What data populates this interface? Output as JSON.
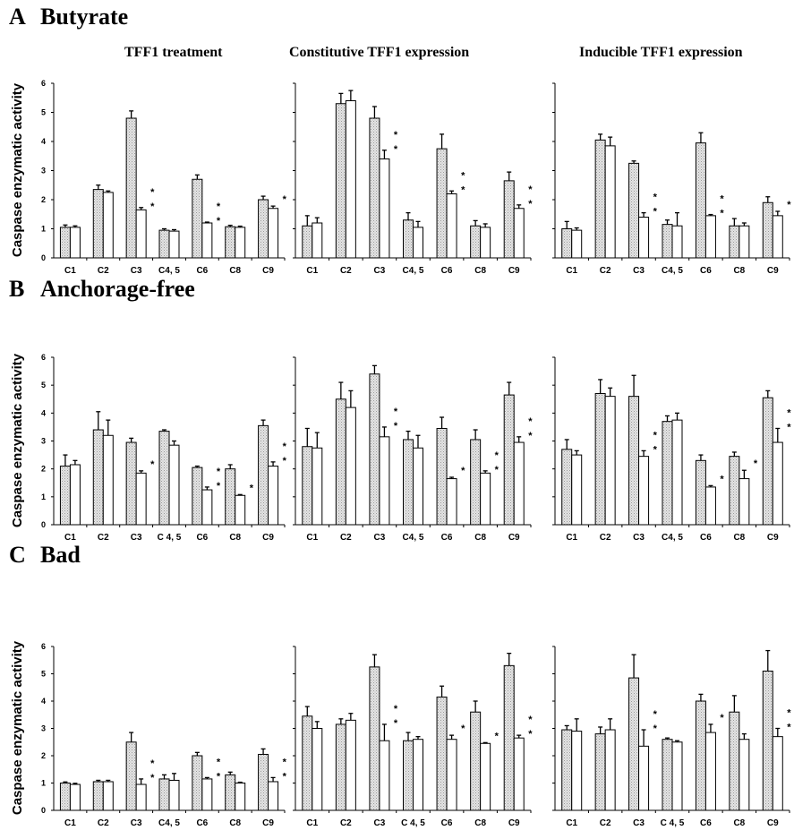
{
  "col_titles": [
    "TFF1 treatment",
    "Constitutive TFF1  expression",
    "Inducible TFF1 expression"
  ],
  "ylabel": "Caspase enzymatic activity",
  "categories_default": [
    "C1",
    "C2",
    "C3",
    "C4, 5",
    "C6",
    "C8",
    "C9"
  ],
  "yticks": [
    "0",
    "1",
    "2",
    "3",
    "4",
    "5",
    "6"
  ],
  "chart_data": [
    {
      "type": "bar",
      "panel": "A",
      "panel_title": "Butyrate",
      "ylim": [
        0,
        6
      ],
      "charts": [
        {
          "categories": [
            "C1",
            "C2",
            "C3",
            "C4, 5",
            "C6",
            "C8",
            "C9"
          ],
          "series": [
            {
              "values": [
                1.05,
                2.35,
                4.8,
                0.95,
                2.7,
                1.07,
                2.0
              ],
              "errors": [
                0.08,
                0.15,
                0.25,
                0.05,
                0.15,
                0.05,
                0.12
              ]
            },
            {
              "values": [
                1.05,
                2.25,
                1.65,
                0.92,
                1.2,
                1.05,
                1.7
              ],
              "errors": [
                0.05,
                0.05,
                0.08,
                0.05,
                0.03,
                0.04,
                0.08
              ]
            }
          ],
          "sig": [
            "",
            "",
            "**",
            "",
            "**",
            "",
            "*"
          ]
        },
        {
          "categories": [
            "C1",
            "C2",
            "C3",
            "C4, 5",
            "C6",
            "C8",
            "C9"
          ],
          "series": [
            {
              "values": [
                1.1,
                5.3,
                4.8,
                1.3,
                3.75,
                1.1,
                2.65
              ],
              "errors": [
                0.35,
                0.35,
                0.4,
                0.25,
                0.5,
                0.18,
                0.3
              ]
            },
            {
              "values": [
                1.2,
                5.4,
                3.4,
                1.05,
                2.2,
                1.05,
                1.7
              ],
              "errors": [
                0.18,
                0.35,
                0.3,
                0.2,
                0.1,
                0.12,
                0.12
              ]
            }
          ],
          "sig": [
            "",
            "",
            "**",
            "",
            "**",
            "",
            "**"
          ]
        },
        {
          "categories": [
            "C1",
            "C2",
            "C3",
            "C4, 5",
            "C6",
            "C8",
            "C9"
          ],
          "series": [
            {
              "values": [
                1.0,
                4.05,
                3.25,
                1.15,
                3.95,
                1.1,
                1.9
              ],
              "errors": [
                0.25,
                0.2,
                0.08,
                0.15,
                0.35,
                0.25,
                0.2
              ]
            },
            {
              "values": [
                0.95,
                3.85,
                1.4,
                1.1,
                1.45,
                1.1,
                1.45
              ],
              "errors": [
                0.08,
                0.3,
                0.15,
                0.45,
                0.04,
                0.1,
                0.15
              ]
            }
          ],
          "sig": [
            "",
            "",
            "**",
            "",
            "**",
            "",
            "*"
          ]
        }
      ]
    },
    {
      "type": "bar",
      "panel": "B",
      "panel_title": "Anchorage-free",
      "ylim": [
        0,
        6
      ],
      "charts": [
        {
          "categories": [
            "C1",
            "C2",
            "C3",
            "C 4, 5",
            "C6",
            "C8",
            "C9"
          ],
          "series": [
            {
              "values": [
                2.1,
                3.4,
                2.95,
                3.35,
                2.05,
                2.0,
                3.55
              ],
              "errors": [
                0.4,
                0.65,
                0.15,
                0.05,
                0.05,
                0.15,
                0.2
              ]
            },
            {
              "values": [
                2.15,
                3.2,
                1.85,
                2.85,
                1.25,
                1.05,
                2.1
              ],
              "errors": [
                0.15,
                0.55,
                0.08,
                0.15,
                0.1,
                0.03,
                0.15
              ]
            }
          ],
          "sig": [
            "",
            "",
            "*",
            "",
            "**",
            "*",
            "**"
          ]
        },
        {
          "categories": [
            "C1",
            "C2",
            "C3",
            "C4, 5",
            "C6",
            "C8",
            "C9"
          ],
          "series": [
            {
              "values": [
                2.8,
                4.5,
                5.4,
                3.05,
                3.45,
                3.05,
                4.65
              ],
              "errors": [
                0.65,
                0.6,
                0.3,
                0.3,
                0.4,
                0.35,
                0.45
              ]
            },
            {
              "values": [
                2.75,
                4.2,
                3.15,
                2.75,
                1.65,
                1.85,
                2.95
              ],
              "errors": [
                0.55,
                0.6,
                0.35,
                0.45,
                0.05,
                0.08,
                0.2
              ]
            }
          ],
          "sig": [
            "",
            "",
            "**",
            "",
            "*",
            "**",
            "**"
          ]
        },
        {
          "categories": [
            "C1",
            "C2",
            "C3",
            "C4, 5",
            "C6",
            "C8",
            "C9"
          ],
          "series": [
            {
              "values": [
                2.7,
                4.7,
                4.6,
                3.7,
                2.3,
                2.45,
                4.55
              ],
              "errors": [
                0.35,
                0.5,
                0.75,
                0.2,
                0.2,
                0.15,
                0.25
              ]
            },
            {
              "values": [
                2.5,
                4.6,
                2.45,
                3.75,
                1.35,
                1.65,
                2.95
              ],
              "errors": [
                0.15,
                0.3,
                0.2,
                0.25,
                0.05,
                0.3,
                0.5
              ]
            }
          ],
          "sig": [
            "",
            "",
            "**",
            "",
            "*",
            "*",
            "**"
          ]
        }
      ]
    },
    {
      "type": "bar",
      "panel": "C",
      "panel_title": "Bad",
      "ylim": [
        0,
        6
      ],
      "charts": [
        {
          "categories": [
            "C1",
            "C2",
            "C3",
            "C4, 5",
            "C6",
            "C8",
            "C9"
          ],
          "series": [
            {
              "values": [
                1.0,
                1.05,
                2.5,
                1.15,
                2.0,
                1.3,
                2.05
              ],
              "errors": [
                0.04,
                0.05,
                0.35,
                0.15,
                0.12,
                0.1,
                0.2
              ]
            },
            {
              "values": [
                0.95,
                1.05,
                0.95,
                1.1,
                1.15,
                1.0,
                1.05
              ],
              "errors": [
                0.04,
                0.05,
                0.2,
                0.25,
                0.05,
                0.03,
                0.15
              ]
            }
          ],
          "sig": [
            "",
            "",
            "**",
            "",
            "**",
            "",
            "**"
          ]
        },
        {
          "categories": [
            "C1",
            "C2",
            "C3",
            "C 4, 5",
            "C6",
            "C8",
            "C9"
          ],
          "series": [
            {
              "values": [
                3.45,
                3.15,
                5.25,
                2.55,
                4.15,
                3.6,
                5.3
              ],
              "errors": [
                0.35,
                0.2,
                0.45,
                0.3,
                0.4,
                0.4,
                0.45
              ]
            },
            {
              "values": [
                3.0,
                3.3,
                2.55,
                2.6,
                2.6,
                2.45,
                2.65
              ],
              "errors": [
                0.25,
                0.25,
                0.6,
                0.1,
                0.15,
                0.03,
                0.1
              ]
            }
          ],
          "sig": [
            "",
            "",
            "**",
            "",
            "*",
            "*",
            "**"
          ]
        },
        {
          "categories": [
            "C1",
            "C2",
            "C3",
            "C 4, 5",
            "C6",
            "C8",
            "C9"
          ],
          "series": [
            {
              "values": [
                2.95,
                2.8,
                4.85,
                2.6,
                4.0,
                3.6,
                5.1
              ],
              "errors": [
                0.15,
                0.25,
                0.85,
                0.05,
                0.25,
                0.6,
                0.75
              ]
            },
            {
              "values": [
                2.9,
                2.95,
                2.35,
                2.5,
                2.85,
                2.6,
                2.7
              ],
              "errors": [
                0.45,
                0.4,
                0.6,
                0.05,
                0.3,
                0.2,
                0.3
              ]
            }
          ],
          "sig": [
            "",
            "",
            "**",
            "",
            "*",
            "",
            "**"
          ]
        }
      ]
    }
  ]
}
